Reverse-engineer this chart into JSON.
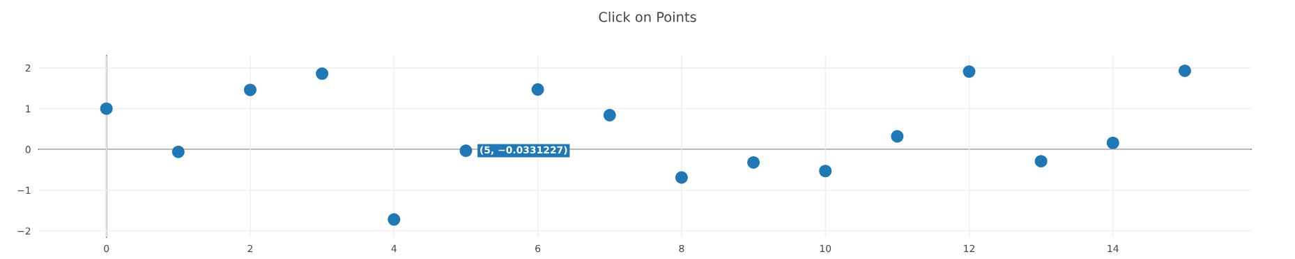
{
  "chart_data": {
    "type": "scatter",
    "title": "Click on Points",
    "x": [
      0,
      1,
      2,
      3,
      4,
      5,
      6,
      7,
      8,
      9,
      10,
      11,
      12,
      13,
      14,
      15
    ],
    "series": [
      {
        "color": "#1f77b4",
        "values": [
          1.0,
          -0.06,
          1.46,
          1.86,
          -1.72,
          -0.0331227,
          1.47,
          0.84,
          -0.69,
          -0.32,
          -0.53,
          0.32,
          1.91,
          -0.29,
          0.16,
          1.93
        ]
      }
    ],
    "xlim": [
      -0.94,
      15.92
    ],
    "ylim": [
      -2.15,
      2.3
    ],
    "xticks": [
      0,
      2,
      4,
      6,
      8,
      10,
      12,
      14
    ],
    "yticks": [
      -2,
      -1,
      0,
      1,
      2
    ],
    "annotations": [
      {
        "text": "(5, −0.0331227)",
        "x": 5,
        "y": -0.0331227
      }
    ],
    "grid": true,
    "marker": "circle",
    "legend": false
  }
}
